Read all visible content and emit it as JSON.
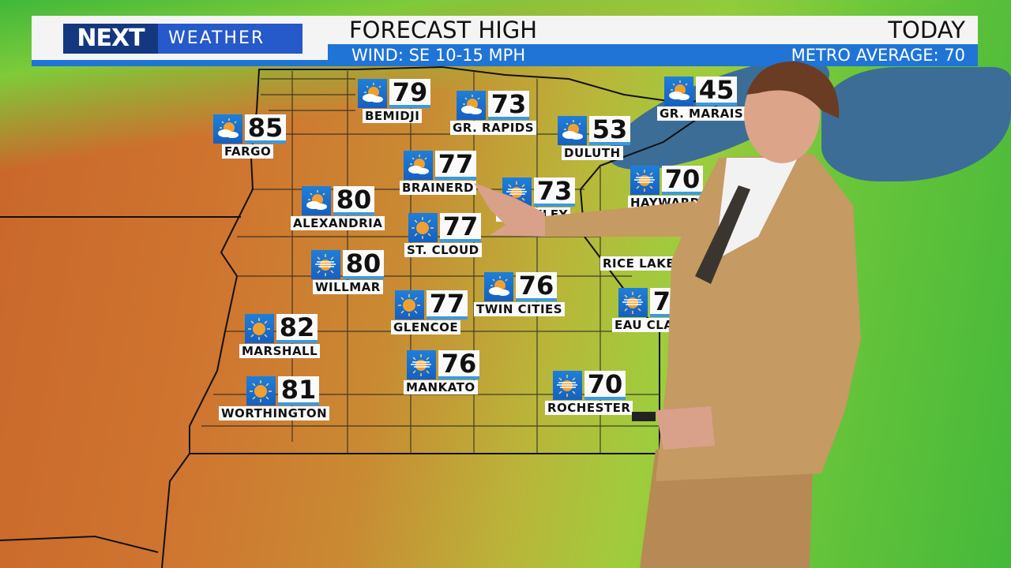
{
  "header": {
    "logo_next": "NEXT",
    "logo_weather": "WEATHER",
    "title": "FORECAST HIGH",
    "day": "TODAY",
    "wind": "WIND: SE 10-15 MPH",
    "metro": "METRO AVERAGE: 70"
  },
  "colors": {
    "banner_blue": "#1f74d6",
    "logo_dark": "#14387f",
    "icon_blue": "#1f7fd8"
  },
  "cities": [
    {
      "name": "FARGO",
      "temp": "85",
      "icon": "partly-cloudy-icon"
    },
    {
      "name": "BEMIDJI",
      "temp": "79",
      "icon": "partly-cloudy-icon"
    },
    {
      "name": "GR. RAPIDS",
      "temp": "73",
      "icon": "partly-cloudy-icon"
    },
    {
      "name": "DULUTH",
      "temp": "53",
      "icon": "partly-cloudy-icon"
    },
    {
      "name": "GR. MARAIS",
      "temp": "45",
      "icon": "partly-cloudy-icon"
    },
    {
      "name": "BRAINERD",
      "temp": "77",
      "icon": "partly-cloudy-icon"
    },
    {
      "name": "HINCKLEY",
      "temp": "73",
      "icon": "hazy-sun-icon"
    },
    {
      "name": "HAYWARD",
      "temp": "70",
      "icon": "hazy-sun-icon"
    },
    {
      "name": "ALEXANDRIA",
      "temp": "80",
      "icon": "partly-cloudy-icon"
    },
    {
      "name": "ST. CLOUD",
      "temp": "77",
      "icon": "sunny-icon"
    },
    {
      "name": "WILLMAR",
      "temp": "80",
      "icon": "hazy-sun-icon"
    },
    {
      "name": "TWIN CITIES",
      "temp": "76",
      "icon": "partly-cloudy-icon"
    },
    {
      "name": "RICE LAKE",
      "temp": "",
      "icon": ""
    },
    {
      "name": "EAU CLAIRE",
      "temp": "70",
      "icon": "hazy-sun-icon"
    },
    {
      "name": "GLENCOE",
      "temp": "77",
      "icon": "sunny-icon"
    },
    {
      "name": "MARSHALL",
      "temp": "82",
      "icon": "sunny-icon"
    },
    {
      "name": "MANKATO",
      "temp": "76",
      "icon": "hazy-sun-icon"
    },
    {
      "name": "WORTHINGTON",
      "temp": "81",
      "icon": "sunny-icon"
    },
    {
      "name": "ROCHESTER",
      "temp": "70",
      "icon": "hazy-sun-icon"
    }
  ]
}
